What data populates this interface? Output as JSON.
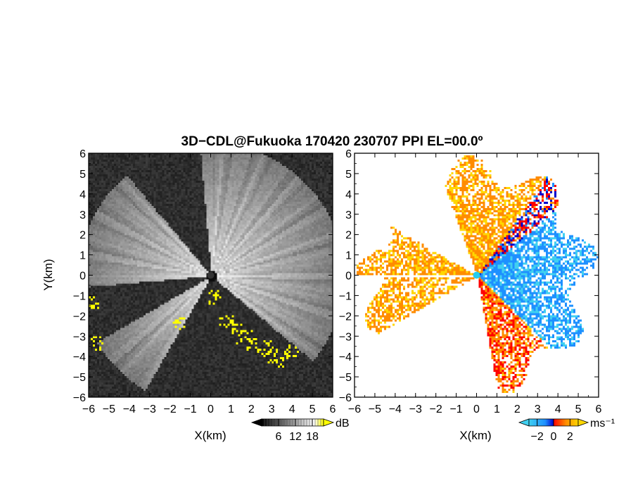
{
  "chart_data": {
    "title": "3D−CDL@Fukuoka 170420 230707 PPI EL=00.0º",
    "radar_location": [
      0,
      0
    ],
    "panels": [
      {
        "type": "heatmap",
        "quantity": "reflectivity",
        "xlabel": "X(km)",
        "ylabel": "Y(km)",
        "xlim": [
          -6,
          6
        ],
        "ylim": [
          -6,
          6
        ],
        "xticks": [
          "−6",
          "−5",
          "−4",
          "−3",
          "−2",
          "−1",
          "0",
          "1",
          "2",
          "3",
          "4",
          "5",
          "6"
        ],
        "yticks": [
          "−6",
          "−5",
          "−4",
          "−3",
          "−2",
          "−1",
          "0",
          "1",
          "2",
          "3",
          "4",
          "5",
          "6"
        ],
        "colorbar": {
          "unit": "dB",
          "ticks": [
            6,
            12,
            18
          ],
          "tick_labels": [
            "6",
            "12",
            "18"
          ],
          "range": [
            0,
            22
          ],
          "colors": [
            "#000000",
            "#ffffff",
            "#ffff00"
          ]
        }
      },
      {
        "type": "heatmap",
        "quantity": "doppler velocity",
        "xlabel": "X(km)",
        "ylabel": "",
        "xlim": [
          -6,
          6
        ],
        "ylim": [
          -6,
          6
        ],
        "xticks": [
          "−6",
          "−5",
          "−4",
          "−3",
          "−2",
          "−1",
          "0",
          "1",
          "2",
          "3",
          "4",
          "5",
          "6"
        ],
        "yticks": [
          "−6",
          "−5",
          "−4",
          "−3",
          "−2",
          "−1",
          "0",
          "1",
          "2",
          "3",
          "4",
          "5",
          "6"
        ],
        "colorbar": {
          "unit": "ms⁻¹",
          "ticks": [
            -2,
            0,
            2
          ],
          "tick_labels": [
            "−2",
            "0",
            "2"
          ],
          "range": [
            -3,
            3
          ],
          "colors": [
            "#40d0f0",
            "#1e90ff",
            "#0000cc",
            "#ff0000",
            "#ff8c00",
            "#ffd700"
          ]
        }
      }
    ]
  }
}
